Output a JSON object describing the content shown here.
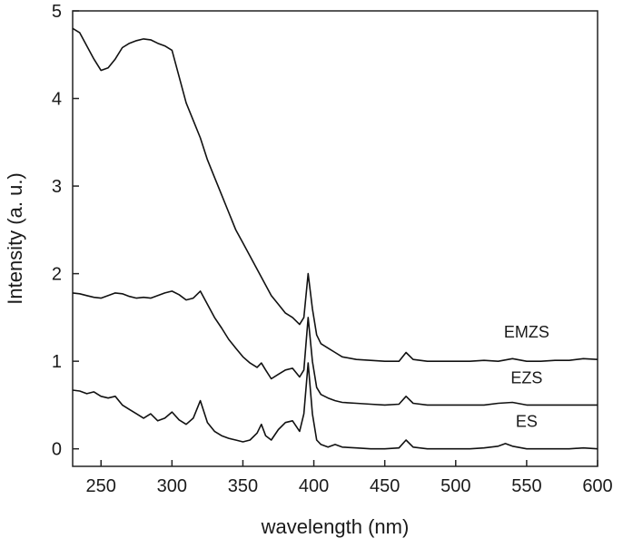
{
  "chart_data": {
    "type": "line",
    "title": "",
    "xlabel": "wavelength (nm)",
    "ylabel": "Intensity (a. u.)",
    "xlim": [
      230,
      600
    ],
    "ylim": [
      -0.2,
      5
    ],
    "xticks": [
      250,
      300,
      350,
      400,
      450,
      500,
      550,
      600
    ],
    "xtick_labels": [
      "250",
      "300",
      "350",
      "400",
      "450",
      "500",
      "550",
      "600"
    ],
    "yticks": [
      0,
      1,
      2,
      3,
      4,
      5
    ],
    "ytick_labels": [
      "0",
      "1",
      "2",
      "3",
      "4",
      "5"
    ],
    "grid": false,
    "legend": "inline labels at right end of each curve",
    "line_color": "#111111",
    "series": [
      {
        "name": "EMZS",
        "x": [
          230,
          235,
          240,
          245,
          250,
          255,
          260,
          265,
          270,
          275,
          280,
          285,
          290,
          295,
          300,
          305,
          310,
          315,
          320,
          325,
          330,
          335,
          340,
          345,
          350,
          355,
          360,
          365,
          370,
          375,
          380,
          385,
          390,
          393,
          396,
          399,
          402,
          405,
          410,
          415,
          420,
          430,
          440,
          450,
          460,
          465,
          470,
          480,
          490,
          500,
          510,
          520,
          530,
          540,
          550,
          560,
          570,
          580,
          590,
          600
        ],
        "y": [
          4.8,
          4.75,
          4.6,
          4.45,
          4.32,
          4.35,
          4.45,
          4.58,
          4.63,
          4.66,
          4.68,
          4.67,
          4.63,
          4.6,
          4.55,
          4.25,
          3.95,
          3.75,
          3.55,
          3.3,
          3.1,
          2.9,
          2.7,
          2.5,
          2.35,
          2.2,
          2.05,
          1.9,
          1.75,
          1.65,
          1.55,
          1.5,
          1.42,
          1.5,
          2.0,
          1.6,
          1.3,
          1.2,
          1.15,
          1.1,
          1.05,
          1.02,
          1.01,
          1.0,
          1.0,
          1.1,
          1.02,
          1.0,
          1.0,
          1.0,
          1.0,
          1.01,
          1.0,
          1.03,
          1.0,
          1.0,
          1.01,
          1.01,
          1.03,
          1.02
        ]
      },
      {
        "name": "EZS",
        "x": [
          230,
          235,
          240,
          245,
          250,
          255,
          260,
          265,
          270,
          275,
          280,
          285,
          290,
          295,
          300,
          305,
          310,
          315,
          320,
          325,
          330,
          335,
          340,
          345,
          350,
          355,
          360,
          363,
          366,
          370,
          375,
          380,
          385,
          390,
          393,
          396,
          399,
          402,
          405,
          410,
          415,
          420,
          430,
          440,
          450,
          460,
          465,
          470,
          480,
          490,
          500,
          510,
          520,
          530,
          540,
          550,
          560,
          570,
          580,
          590,
          600
        ],
        "y": [
          1.78,
          1.77,
          1.75,
          1.73,
          1.72,
          1.75,
          1.78,
          1.77,
          1.74,
          1.72,
          1.73,
          1.72,
          1.75,
          1.78,
          1.8,
          1.76,
          1.7,
          1.72,
          1.8,
          1.65,
          1.5,
          1.38,
          1.25,
          1.15,
          1.05,
          0.98,
          0.93,
          0.98,
          0.9,
          0.8,
          0.85,
          0.9,
          0.92,
          0.82,
          0.9,
          1.5,
          1.0,
          0.7,
          0.62,
          0.58,
          0.55,
          0.53,
          0.52,
          0.51,
          0.5,
          0.51,
          0.6,
          0.52,
          0.5,
          0.5,
          0.5,
          0.5,
          0.5,
          0.52,
          0.53,
          0.5,
          0.5,
          0.5,
          0.5,
          0.5,
          0.5
        ]
      },
      {
        "name": "ES",
        "x": [
          230,
          235,
          240,
          245,
          250,
          255,
          260,
          265,
          270,
          275,
          280,
          285,
          290,
          295,
          300,
          305,
          310,
          315,
          320,
          325,
          330,
          335,
          340,
          345,
          350,
          355,
          360,
          363,
          366,
          370,
          375,
          380,
          385,
          390,
          393,
          396,
          399,
          402,
          405,
          410,
          415,
          420,
          430,
          440,
          450,
          460,
          465,
          470,
          480,
          490,
          500,
          510,
          520,
          530,
          535,
          540,
          550,
          560,
          570,
          580,
          590,
          600
        ],
        "y": [
          0.67,
          0.66,
          0.63,
          0.65,
          0.6,
          0.58,
          0.6,
          0.5,
          0.45,
          0.4,
          0.35,
          0.4,
          0.32,
          0.35,
          0.42,
          0.33,
          0.28,
          0.35,
          0.55,
          0.3,
          0.2,
          0.15,
          0.12,
          0.1,
          0.08,
          0.1,
          0.18,
          0.28,
          0.15,
          0.1,
          0.22,
          0.3,
          0.32,
          0.2,
          0.4,
          0.98,
          0.4,
          0.1,
          0.05,
          0.02,
          0.05,
          0.02,
          0.01,
          0.0,
          0.0,
          0.01,
          0.1,
          0.02,
          0.0,
          0.0,
          0.0,
          0.0,
          0.01,
          0.03,
          0.06,
          0.03,
          0.0,
          0.0,
          0.0,
          0.0,
          0.01,
          0.0
        ]
      }
    ]
  }
}
